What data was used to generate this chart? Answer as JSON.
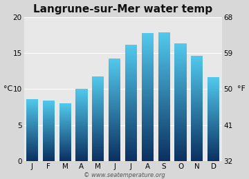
{
  "title": "Langrune-sur-Mer water temp",
  "months": [
    "J",
    "F",
    "M",
    "A",
    "M",
    "J",
    "J",
    "A",
    "S",
    "O",
    "N",
    "D"
  ],
  "values_c": [
    8.6,
    8.4,
    8.0,
    10.0,
    11.7,
    14.2,
    16.1,
    17.7,
    17.8,
    16.3,
    14.6,
    11.6
  ],
  "ylim_c": [
    0,
    20
  ],
  "yticks_c": [
    0,
    5,
    10,
    15,
    20
  ],
  "yticks_f": [
    32,
    41,
    50,
    59,
    68
  ],
  "ylabel_left": "°C",
  "ylabel_right": "°F",
  "bar_color_top": "#52c8ec",
  "bar_color_bottom": "#0a3060",
  "fig_bg_color": "#d8d8d8",
  "plot_bg_color": "#e8e8e8",
  "watermark": "© www.seatemperature.org",
  "title_fontsize": 11,
  "tick_fontsize": 7.5,
  "label_fontsize": 8,
  "watermark_fontsize": 6
}
